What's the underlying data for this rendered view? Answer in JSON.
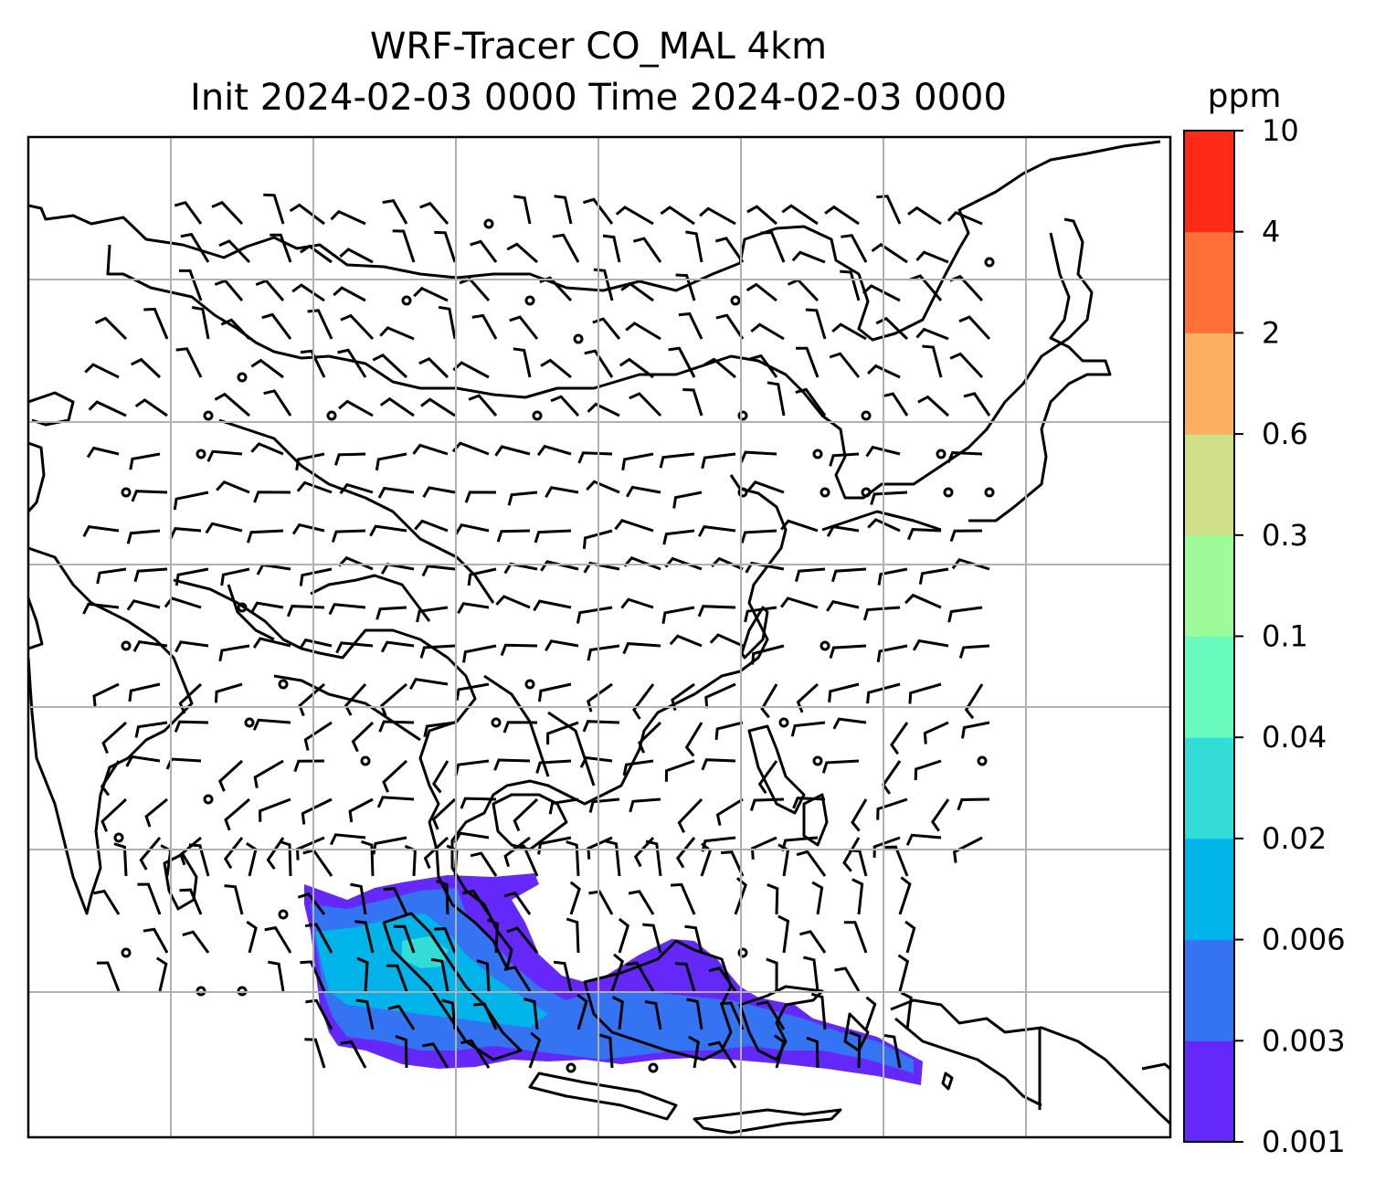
{
  "chart_data": {
    "type": "heatmap",
    "title": "WRF-Tracer CO_MAL 4km",
    "subtitle": "Init 2024-02-03 0000 Time 2024-02-03 0000",
    "variable": "CO_MAL tracer",
    "colorbar": {
      "label": "ppm",
      "levels": [
        "0.001",
        "0.003",
        "0.006",
        "0.02",
        "0.04",
        "0.1",
        "0.3",
        "0.6",
        "2",
        "4",
        "10"
      ],
      "colors": [
        "#6429f9",
        "#3474f3",
        "#00b4e9",
        "#33dcd6",
        "#68fbbd",
        "#9dfb9a",
        "#d0e088",
        "#fcaf60",
        "#fe7035",
        "#ff2a17"
      ]
    },
    "grid": true,
    "overlays": [
      "coastlines",
      "country borders",
      "wind barbs"
    ]
  }
}
